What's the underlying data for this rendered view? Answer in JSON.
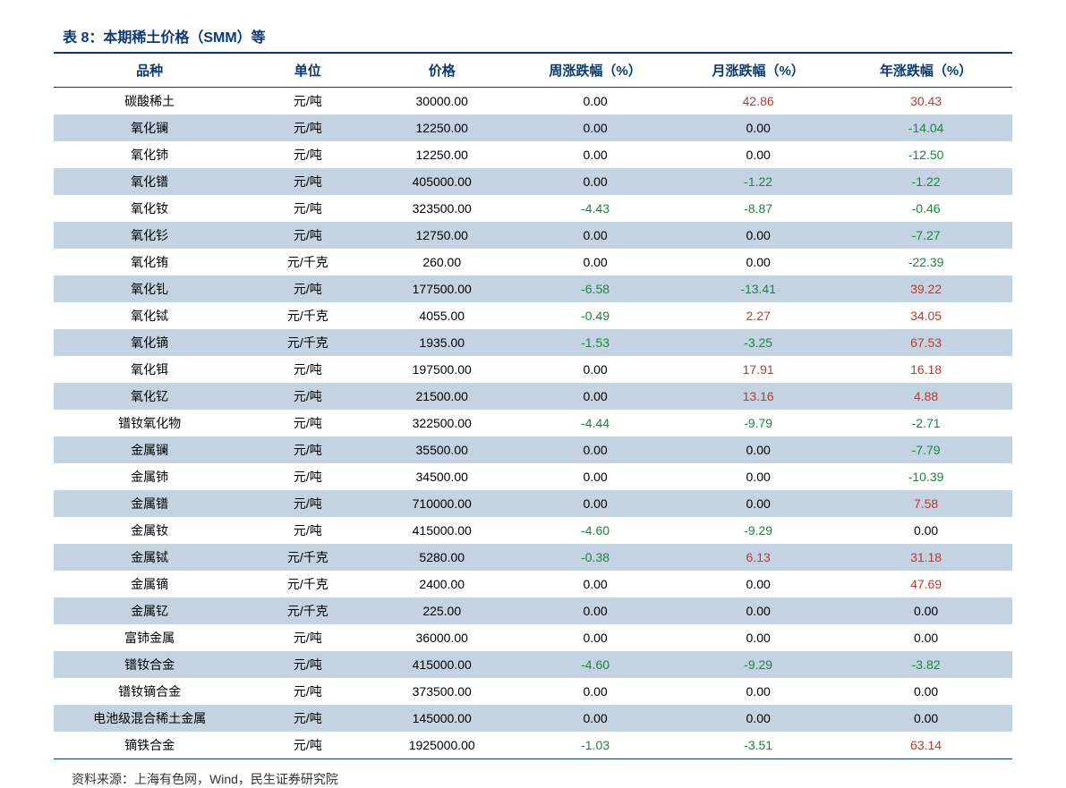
{
  "title": "表 8：本期稀土价格（SMM）等",
  "headers": [
    "品种",
    "单位",
    "价格",
    "周涨跌幅（%）",
    "月涨跌幅（%）",
    "年涨跌幅（%）"
  ],
  "rows": [
    {
      "name": "碳酸稀土",
      "unit": "元/吨",
      "price": "30000.00",
      "w": "0.00",
      "wc": "",
      "m": "42.86",
      "mc": "pos",
      "y": "30.43",
      "yc": "pos"
    },
    {
      "name": "氧化镧",
      "unit": "元/吨",
      "price": "12250.00",
      "w": "0.00",
      "wc": "",
      "m": "0.00",
      "mc": "",
      "y": "-14.04",
      "yc": "neg"
    },
    {
      "name": "氧化铈",
      "unit": "元/吨",
      "price": "12250.00",
      "w": "0.00",
      "wc": "",
      "m": "0.00",
      "mc": "",
      "y": "-12.50",
      "yc": "neg"
    },
    {
      "name": "氧化镨",
      "unit": "元/吨",
      "price": "405000.00",
      "w": "0.00",
      "wc": "",
      "m": "-1.22",
      "mc": "neg",
      "y": "-1.22",
      "yc": "neg"
    },
    {
      "name": "氧化钕",
      "unit": "元/吨",
      "price": "323500.00",
      "w": "-4.43",
      "wc": "neg",
      "m": "-8.87",
      "mc": "neg",
      "y": "-0.46",
      "yc": "neg"
    },
    {
      "name": "氧化钐",
      "unit": "元/吨",
      "price": "12750.00",
      "w": "0.00",
      "wc": "",
      "m": "0.00",
      "mc": "",
      "y": "-7.27",
      "yc": "neg"
    },
    {
      "name": "氧化铕",
      "unit": "元/千克",
      "price": "260.00",
      "w": "0.00",
      "wc": "",
      "m": "0.00",
      "mc": "",
      "y": "-22.39",
      "yc": "neg"
    },
    {
      "name": "氧化钆",
      "unit": "元/吨",
      "price": "177500.00",
      "w": "-6.58",
      "wc": "neg",
      "m": "-13.41",
      "mc": "neg",
      "y": "39.22",
      "yc": "pos"
    },
    {
      "name": "氧化铽",
      "unit": "元/千克",
      "price": "4055.00",
      "w": "-0.49",
      "wc": "neg",
      "m": "2.27",
      "mc": "pos",
      "y": "34.05",
      "yc": "pos"
    },
    {
      "name": "氧化镝",
      "unit": "元/千克",
      "price": "1935.00",
      "w": "-1.53",
      "wc": "neg",
      "m": "-3.25",
      "mc": "neg",
      "y": "67.53",
      "yc": "pos"
    },
    {
      "name": "氧化铒",
      "unit": "元/吨",
      "price": "197500.00",
      "w": "0.00",
      "wc": "",
      "m": "17.91",
      "mc": "pos",
      "y": "16.18",
      "yc": "pos"
    },
    {
      "name": "氧化钇",
      "unit": "元/吨",
      "price": "21500.00",
      "w": "0.00",
      "wc": "",
      "m": "13.16",
      "mc": "pos",
      "y": "4.88",
      "yc": "pos"
    },
    {
      "name": "镨钕氧化物",
      "unit": "元/吨",
      "price": "322500.00",
      "w": "-4.44",
      "wc": "neg",
      "m": "-9.79",
      "mc": "neg",
      "y": "-2.71",
      "yc": "neg"
    },
    {
      "name": "金属镧",
      "unit": "元/吨",
      "price": "35500.00",
      "w": "0.00",
      "wc": "",
      "m": "0.00",
      "mc": "",
      "y": "-7.79",
      "yc": "neg"
    },
    {
      "name": "金属铈",
      "unit": "元/吨",
      "price": "34500.00",
      "w": "0.00",
      "wc": "",
      "m": "0.00",
      "mc": "",
      "y": "-10.39",
      "yc": "neg"
    },
    {
      "name": "金属镨",
      "unit": "元/吨",
      "price": "710000.00",
      "w": "0.00",
      "wc": "",
      "m": "0.00",
      "mc": "",
      "y": "7.58",
      "yc": "pos"
    },
    {
      "name": "金属钕",
      "unit": "元/吨",
      "price": "415000.00",
      "w": "-4.60",
      "wc": "neg",
      "m": "-9.29",
      "mc": "neg",
      "y": "0.00",
      "yc": ""
    },
    {
      "name": "金属铽",
      "unit": "元/千克",
      "price": "5280.00",
      "w": "-0.38",
      "wc": "neg",
      "m": "6.13",
      "mc": "pos",
      "y": "31.18",
      "yc": "pos"
    },
    {
      "name": "金属镝",
      "unit": "元/千克",
      "price": "2400.00",
      "w": "0.00",
      "wc": "",
      "m": "0.00",
      "mc": "",
      "y": "47.69",
      "yc": "pos"
    },
    {
      "name": "金属钇",
      "unit": "元/千克",
      "price": "225.00",
      "w": "0.00",
      "wc": "",
      "m": "0.00",
      "mc": "",
      "y": "0.00",
      "yc": ""
    },
    {
      "name": "富铈金属",
      "unit": "元/吨",
      "price": "36000.00",
      "w": "0.00",
      "wc": "",
      "m": "0.00",
      "mc": "",
      "y": "0.00",
      "yc": ""
    },
    {
      "name": "镨钕合金",
      "unit": "元/吨",
      "price": "415000.00",
      "w": "-4.60",
      "wc": "neg",
      "m": "-9.29",
      "mc": "neg",
      "y": "-3.82",
      "yc": "neg"
    },
    {
      "name": "镨钕镝合金",
      "unit": "元/吨",
      "price": "373500.00",
      "w": "0.00",
      "wc": "",
      "m": "0.00",
      "mc": "",
      "y": "0.00",
      "yc": ""
    },
    {
      "name": "电池级混合稀土金属",
      "unit": "元/吨",
      "price": "145000.00",
      "w": "0.00",
      "wc": "",
      "m": "0.00",
      "mc": "",
      "y": "0.00",
      "yc": ""
    },
    {
      "name": "镝铁合金",
      "unit": "元/吨",
      "price": "1925000.00",
      "w": "-1.03",
      "wc": "neg",
      "m": "-3.51",
      "mc": "neg",
      "y": "63.14",
      "yc": "pos"
    }
  ],
  "source": "资料来源：上海有色网，Wind，民生证券研究院",
  "colors": {
    "header_text": "#0b3a72",
    "border": "#0b3a72",
    "alt_row": "#c4d3e2",
    "negative": "#158a3a",
    "positive": "#c0392b",
    "background": "#ffffff"
  }
}
